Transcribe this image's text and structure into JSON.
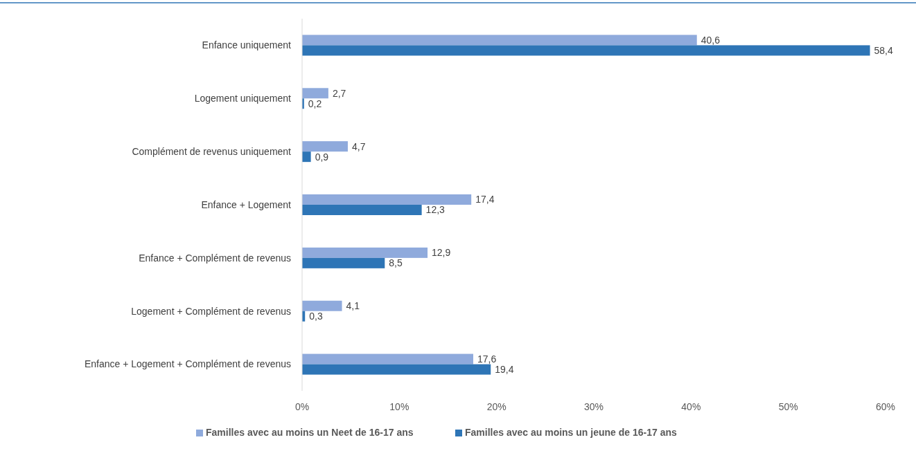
{
  "chart_data": {
    "type": "bar",
    "orientation": "horizontal",
    "categories": [
      "Enfance uniquement",
      "Logement uniquement",
      "Complément de revenus uniquement",
      "Enfance + Logement",
      "Enfance + Complément de revenus",
      "Logement + Complément de revenus",
      "Enfance + Logement + Complément de revenus"
    ],
    "series": [
      {
        "name": "Familles avec au moins un Neet de 16-17 ans",
        "color": "#8faadc",
        "values": [
          40.6,
          2.7,
          4.7,
          17.4,
          12.9,
          4.1,
          17.6
        ],
        "value_labels": [
          "40,6",
          "2,7",
          "4,7",
          "17,4",
          "12,9",
          "4,1",
          "17,6"
        ]
      },
      {
        "name": "Familles avec au moins un jeune de 16-17 ans",
        "color": "#2e75b6",
        "values": [
          58.4,
          0.2,
          0.9,
          12.3,
          8.5,
          0.3,
          19.4
        ],
        "value_labels": [
          "58,4",
          "0,2",
          "0,9",
          "12,3",
          "8,5",
          "0,3",
          "19,4"
        ]
      }
    ],
    "xlim": [
      0,
      60
    ],
    "xticks": [
      {
        "value": 0,
        "label": "0%"
      },
      {
        "value": 10,
        "label": "10%"
      },
      {
        "value": 20,
        "label": "20%"
      },
      {
        "value": 30,
        "label": "30%"
      },
      {
        "value": 40,
        "label": "40%"
      },
      {
        "value": 50,
        "label": "50%"
      },
      {
        "value": 60,
        "label": "60%"
      }
    ],
    "legend": "bottom",
    "grid": false
  }
}
